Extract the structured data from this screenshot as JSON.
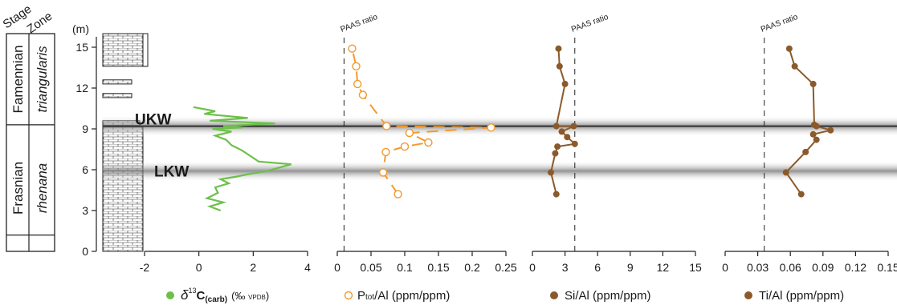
{
  "header": {
    "stage": "Stage",
    "zone": "Zone",
    "unit": "(m)"
  },
  "stages": [
    {
      "name": "Famennian",
      "from": 9.3,
      "to": 16
    },
    {
      "name": "Frasnian",
      "from": 0,
      "to": 9.3
    }
  ],
  "zones": [
    {
      "name": "triangularis",
      "from": 9.3,
      "to": 16
    },
    {
      "name": "rhenana",
      "from": 0,
      "to": 9.3
    }
  ],
  "events": [
    {
      "label": "UKW",
      "depth": 9.2
    },
    {
      "label": "LKW",
      "depth": 5.9
    }
  ],
  "depth_axis": {
    "ylim": [
      0,
      16
    ],
    "ticks": [
      "0",
      "3",
      "6",
      "9",
      "12",
      "15"
    ]
  },
  "colors": {
    "d13c": "#6cc04a",
    "p": "#f29a2e",
    "si": "#8b5a2b",
    "ti": "#8b5a2b",
    "band": "#7a7a7a"
  },
  "chart_data": [
    {
      "type": "line",
      "id": "d13c",
      "xlim": [
        -2,
        4
      ],
      "ticks": [
        "-2",
        "0",
        "2",
        "4"
      ],
      "legend": {
        "symbol": "δ",
        "sup": "13",
        "main": "C",
        "sub": "(carb)",
        "tail": "(‰ ",
        "small": "VPDB",
        "close": ")"
      },
      "series": [
        {
          "marker": "none",
          "points": [
            [
              0.8,
              3.0
            ],
            [
              0.4,
              3.3
            ],
            [
              0.9,
              3.6
            ],
            [
              0.3,
              3.9
            ],
            [
              0.7,
              4.3
            ],
            [
              0.6,
              4.7
            ],
            [
              1.1,
              5.0
            ],
            [
              0.8,
              5.3
            ],
            [
              1.4,
              5.5
            ],
            [
              1.9,
              5.7
            ],
            [
              2.5,
              5.9
            ],
            [
              3.4,
              6.4
            ],
            [
              2.2,
              6.6
            ],
            [
              1.9,
              7.0
            ],
            [
              1.6,
              7.4
            ],
            [
              1.2,
              7.8
            ],
            [
              1.0,
              8.2
            ],
            [
              0.6,
              8.5
            ],
            [
              1.2,
              8.8
            ],
            [
              0.5,
              9.0
            ],
            [
              1.6,
              9.1
            ],
            [
              0.9,
              9.2
            ],
            [
              2.8,
              9.4
            ],
            [
              0.4,
              9.6
            ],
            [
              1.8,
              9.8
            ],
            [
              0.2,
              10.1
            ],
            [
              0.6,
              10.3
            ],
            [
              -0.2,
              10.6
            ]
          ]
        }
      ]
    },
    {
      "type": "line",
      "id": "p",
      "xlim": [
        0,
        0.25
      ],
      "ticks": [
        "0",
        "0.05",
        "0.1",
        "0.15",
        "0.2",
        "0.25"
      ],
      "refline": {
        "value": 0.01,
        "label": "PAAS ratio"
      },
      "legend": {
        "p_main": "P",
        "p_sub": "tot",
        "p_rest": "/Al (ppm/ppm)"
      },
      "series": [
        {
          "marker": "open-circle",
          "points": [
            [
              0.09,
              4.2
            ],
            [
              0.068,
              5.8
            ],
            [
              0.072,
              7.3
            ],
            [
              0.1,
              7.7
            ],
            [
              0.135,
              8.0
            ],
            [
              0.107,
              8.7
            ],
            [
              0.228,
              9.1
            ],
            [
              0.073,
              9.2
            ],
            [
              0.038,
              11.5
            ],
            [
              0.03,
              12.3
            ],
            [
              0.028,
              13.6
            ],
            [
              0.022,
              14.9
            ]
          ]
        }
      ]
    },
    {
      "type": "line",
      "id": "si",
      "xlim": [
        0,
        15
      ],
      "ticks": [
        "0",
        "3",
        "6",
        "9",
        "12",
        "15"
      ],
      "refline": {
        "value": 3.9,
        "label": "PAAS ratio"
      },
      "legend": {
        "text": "Si/Al (ppm/ppm)"
      },
      "series": [
        {
          "marker": "filled-circle",
          "points": [
            [
              2.2,
              4.2
            ],
            [
              1.7,
              5.8
            ],
            [
              2.1,
              7.2
            ],
            [
              2.3,
              7.7
            ],
            [
              3.9,
              7.9
            ],
            [
              3.2,
              8.4
            ],
            [
              2.7,
              8.8
            ],
            [
              3.8,
              9.2
            ],
            [
              2.2,
              9.2
            ],
            [
              3.0,
              12.3
            ],
            [
              2.5,
              13.6
            ],
            [
              2.4,
              14.9
            ]
          ]
        }
      ]
    },
    {
      "type": "line",
      "id": "ti",
      "xlim": [
        0,
        0.15
      ],
      "ticks": [
        "0",
        "0.03",
        "0.06",
        "0.09",
        "0.12",
        "0.15"
      ],
      "refline": {
        "value": 0.036,
        "label": "PAAS ratio"
      },
      "legend": {
        "text": "Ti/Al (ppm/ppm)"
      },
      "series": [
        {
          "marker": "filled-circle",
          "points": [
            [
              0.07,
              4.2
            ],
            [
              0.056,
              5.8
            ],
            [
              0.074,
              7.3
            ],
            [
              0.084,
              8.2
            ],
            [
              0.081,
              8.6
            ],
            [
              0.097,
              8.9
            ],
            [
              0.084,
              9.2
            ],
            [
              0.082,
              9.3
            ],
            [
              0.081,
              12.3
            ],
            [
              0.064,
              13.6
            ],
            [
              0.059,
              14.9
            ]
          ]
        }
      ]
    }
  ]
}
